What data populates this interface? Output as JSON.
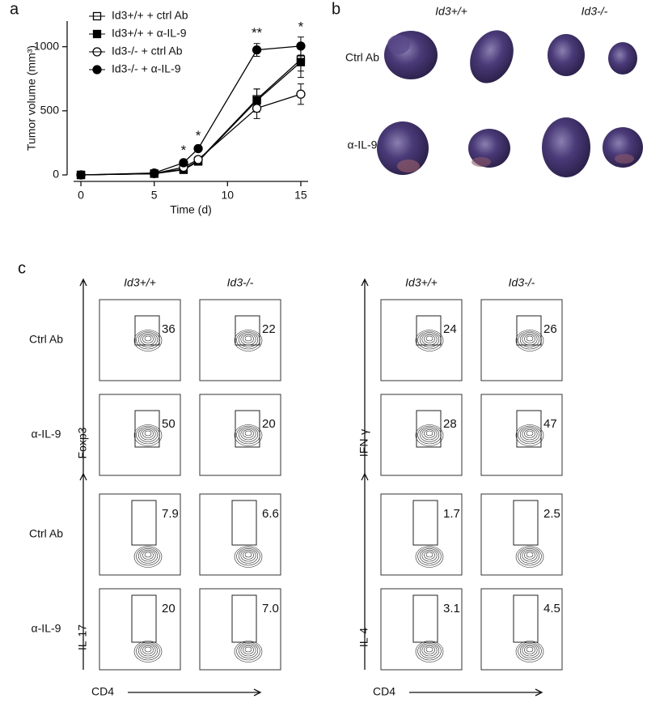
{
  "panel_labels": [
    "a",
    "b",
    "c"
  ],
  "chart_data": {
    "type": "line",
    "x_label": "Time (d)",
    "y_label": "Tumor volume (mm³)",
    "x": [
      0,
      5,
      7,
      8,
      12,
      15
    ],
    "series": [
      {
        "name": "Id3+/+ + ctrl Ab",
        "color": "#000000",
        "marker": "square",
        "filled": false,
        "values": [
          0,
          10,
          45,
          110,
          590,
          900
        ],
        "errors": [
          0,
          5,
          10,
          15,
          80,
          90
        ]
      },
      {
        "name": "Id3+/+ + α-IL-9",
        "color": "#000000",
        "marker": "square",
        "filled": true,
        "values": [
          0,
          10,
          40,
          105,
          580,
          880
        ],
        "errors": [
          0,
          5,
          10,
          15,
          90,
          120
        ]
      },
      {
        "name": "Id3-/- + ctrl Ab",
        "color": "#000000",
        "marker": "circle",
        "filled": false,
        "values": [
          0,
          10,
          60,
          120,
          520,
          630
        ],
        "errors": [
          0,
          5,
          10,
          15,
          80,
          80
        ]
      },
      {
        "name": "Id3-/- + α-IL-9",
        "color": "#000000",
        "marker": "circle",
        "filled": true,
        "values": [
          0,
          15,
          95,
          205,
          975,
          1005
        ],
        "errors": [
          0,
          5,
          15,
          20,
          50,
          70
        ]
      }
    ],
    "annotations": [
      {
        "text": "*",
        "x": 7
      },
      {
        "text": "*",
        "x": 8
      },
      {
        "text": "**",
        "x": 12
      },
      {
        "text": "*",
        "x": 15
      }
    ],
    "xlim": [
      -0.5,
      15.5
    ],
    "ylim": [
      0,
      1200
    ],
    "xticks": [
      0,
      5,
      10,
      15
    ],
    "yticks": [
      0,
      500,
      1000
    ]
  },
  "photos": {
    "columns": [
      "Id3+/+",
      "Id3-/-"
    ],
    "rows": [
      "Ctrl Ab",
      "α-IL-9"
    ]
  },
  "flow": {
    "rows": [
      "Ctrl Ab",
      "α-IL-9",
      "Ctrl Ab",
      "α-IL-9"
    ],
    "groups": [
      {
        "columns": [
          "Id3+/+",
          "Id3-/-"
        ],
        "y_axis_labels": [
          "Foxp3",
          "IL-17"
        ],
        "x_axis_label": "CD4",
        "gates": [
          [
            "36",
            "22"
          ],
          [
            "50",
            "20"
          ],
          [
            "7.9",
            "6.6"
          ],
          [
            "20",
            "7.0"
          ]
        ]
      },
      {
        "columns": [
          "Id3+/+",
          "Id3-/-"
        ],
        "y_axis_labels": [
          "IFN-γ",
          "IL-4"
        ],
        "x_axis_label": "CD4",
        "gates": [
          [
            "24",
            "26"
          ],
          [
            "28",
            "47"
          ],
          [
            "1.7",
            "2.5"
          ],
          [
            "3.1",
            "4.5"
          ]
        ]
      }
    ]
  }
}
